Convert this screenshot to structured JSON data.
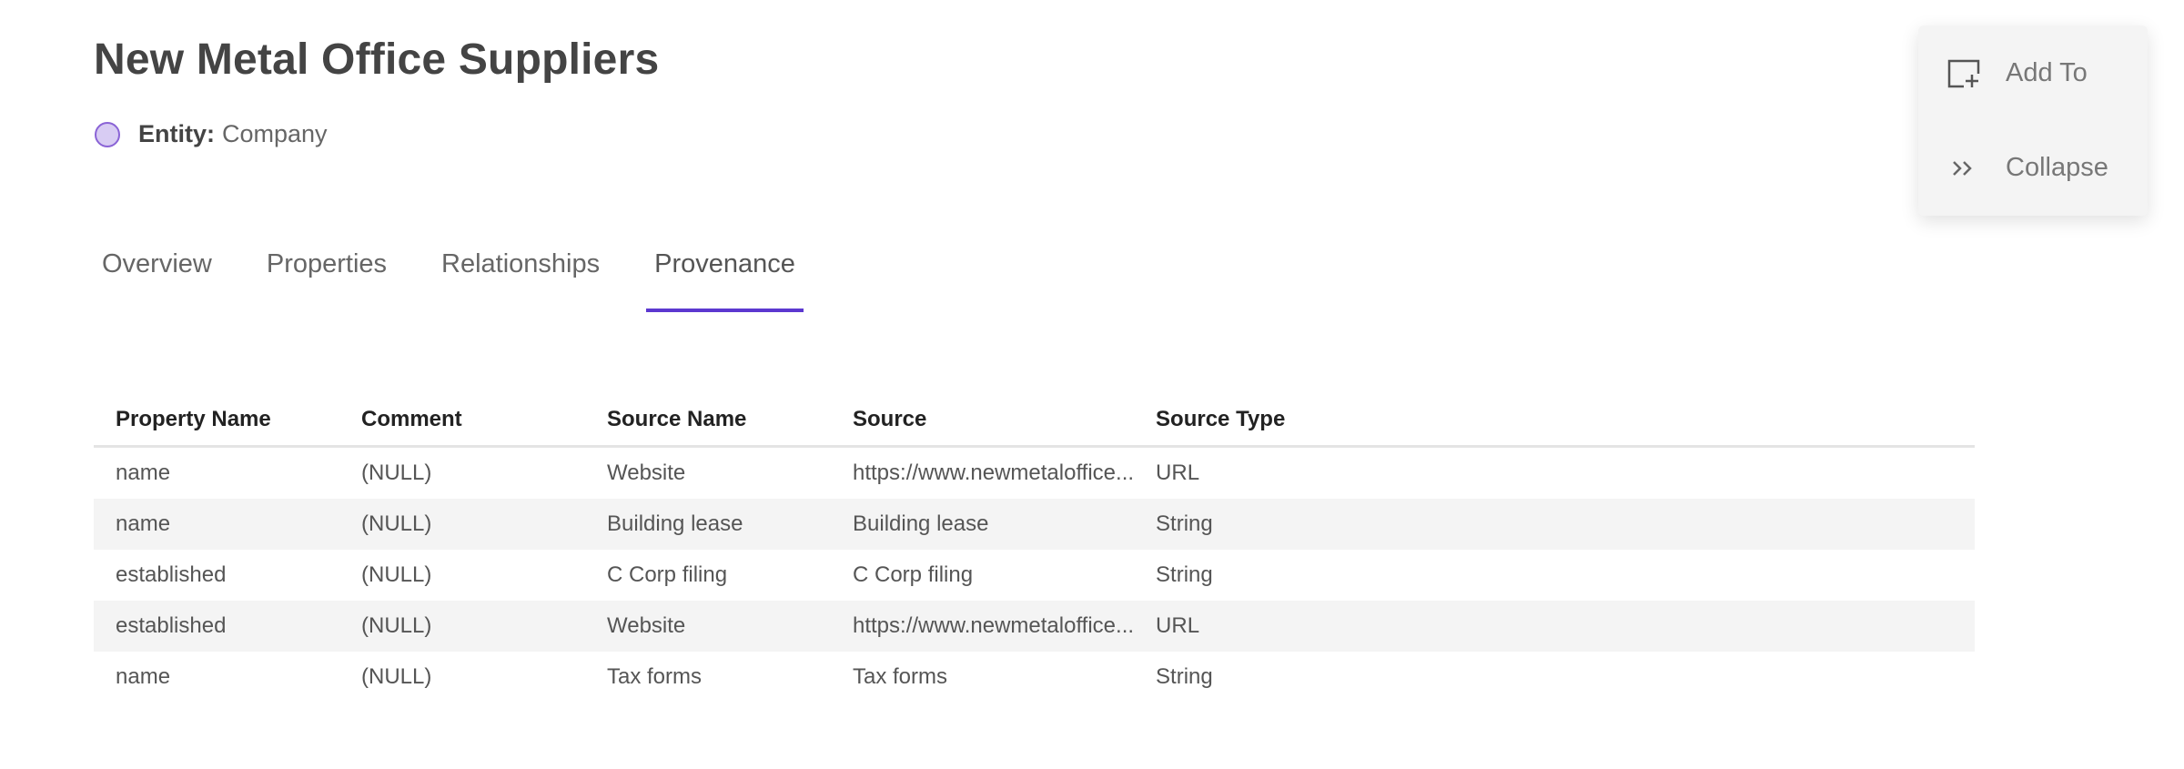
{
  "header": {
    "title": "New Metal Office Suppliers",
    "entity_label": "Entity:",
    "entity_value": "Company",
    "entity_color": "#d8ccf3"
  },
  "tabs": [
    {
      "label": "Overview",
      "active": false
    },
    {
      "label": "Properties",
      "active": false
    },
    {
      "label": "Relationships",
      "active": false
    },
    {
      "label": "Provenance",
      "active": true
    }
  ],
  "accent": "#5c38d0",
  "table": {
    "columns": [
      "Property Name",
      "Comment",
      "Source Name",
      "Source",
      "Source Type"
    ],
    "rows": [
      [
        "name",
        "(NULL)",
        "Website",
        "https://www.newmetaloffice...",
        "URL"
      ],
      [
        "name",
        "(NULL)",
        "Building lease",
        "Building lease",
        "String"
      ],
      [
        "established",
        "(NULL)",
        "C Corp filing",
        "C Corp filing",
        "String"
      ],
      [
        "established",
        "(NULL)",
        "Website",
        "https://www.newmetaloffice...",
        "URL"
      ],
      [
        "name",
        "(NULL)",
        "Tax forms",
        "Tax forms",
        "String"
      ]
    ]
  },
  "actions": {
    "add_to": {
      "label": "Add To",
      "icon": "add-to-icon"
    },
    "collapse": {
      "label": "Collapse",
      "icon": "double-chevron-right-icon"
    }
  }
}
